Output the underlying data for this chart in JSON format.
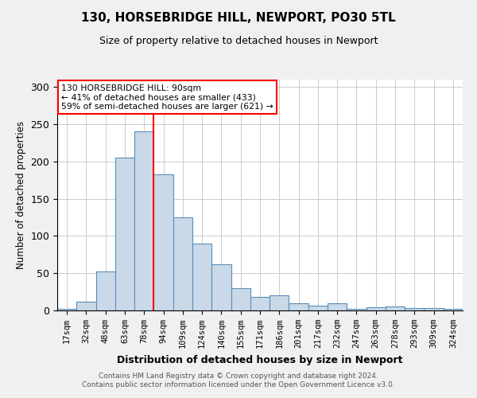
{
  "title": "130, HORSEBRIDGE HILL, NEWPORT, PO30 5TL",
  "subtitle": "Size of property relative to detached houses in Newport",
  "xlabel": "Distribution of detached houses by size in Newport",
  "ylabel": "Number of detached properties",
  "categories": [
    "17sqm",
    "32sqm",
    "48sqm",
    "63sqm",
    "78sqm",
    "94sqm",
    "109sqm",
    "124sqm",
    "140sqm",
    "155sqm",
    "171sqm",
    "186sqm",
    "201sqm",
    "217sqm",
    "232sqm",
    "247sqm",
    "263sqm",
    "278sqm",
    "293sqm",
    "309sqm",
    "324sqm"
  ],
  "values": [
    2,
    12,
    52,
    205,
    240,
    183,
    125,
    90,
    62,
    30,
    18,
    20,
    10,
    6,
    10,
    2,
    4,
    5,
    3,
    3,
    2
  ],
  "bar_color": "#c9d9e8",
  "bar_edge_color": "#5b8db8",
  "vline_x_index": 5,
  "vline_color": "red",
  "ylim": [
    0,
    310
  ],
  "yticks": [
    0,
    50,
    100,
    150,
    200,
    250,
    300
  ],
  "annotation_text": "130 HORSEBRIDGE HILL: 90sqm\n← 41% of detached houses are smaller (433)\n59% of semi-detached houses are larger (621) →",
  "annotation_box_color": "white",
  "annotation_box_edge": "red",
  "footer_line1": "Contains HM Land Registry data © Crown copyright and database right 2024.",
  "footer_line2": "Contains public sector information licensed under the Open Government Licence v3.0.",
  "background_color": "#f0f0f0",
  "plot_background_color": "white"
}
